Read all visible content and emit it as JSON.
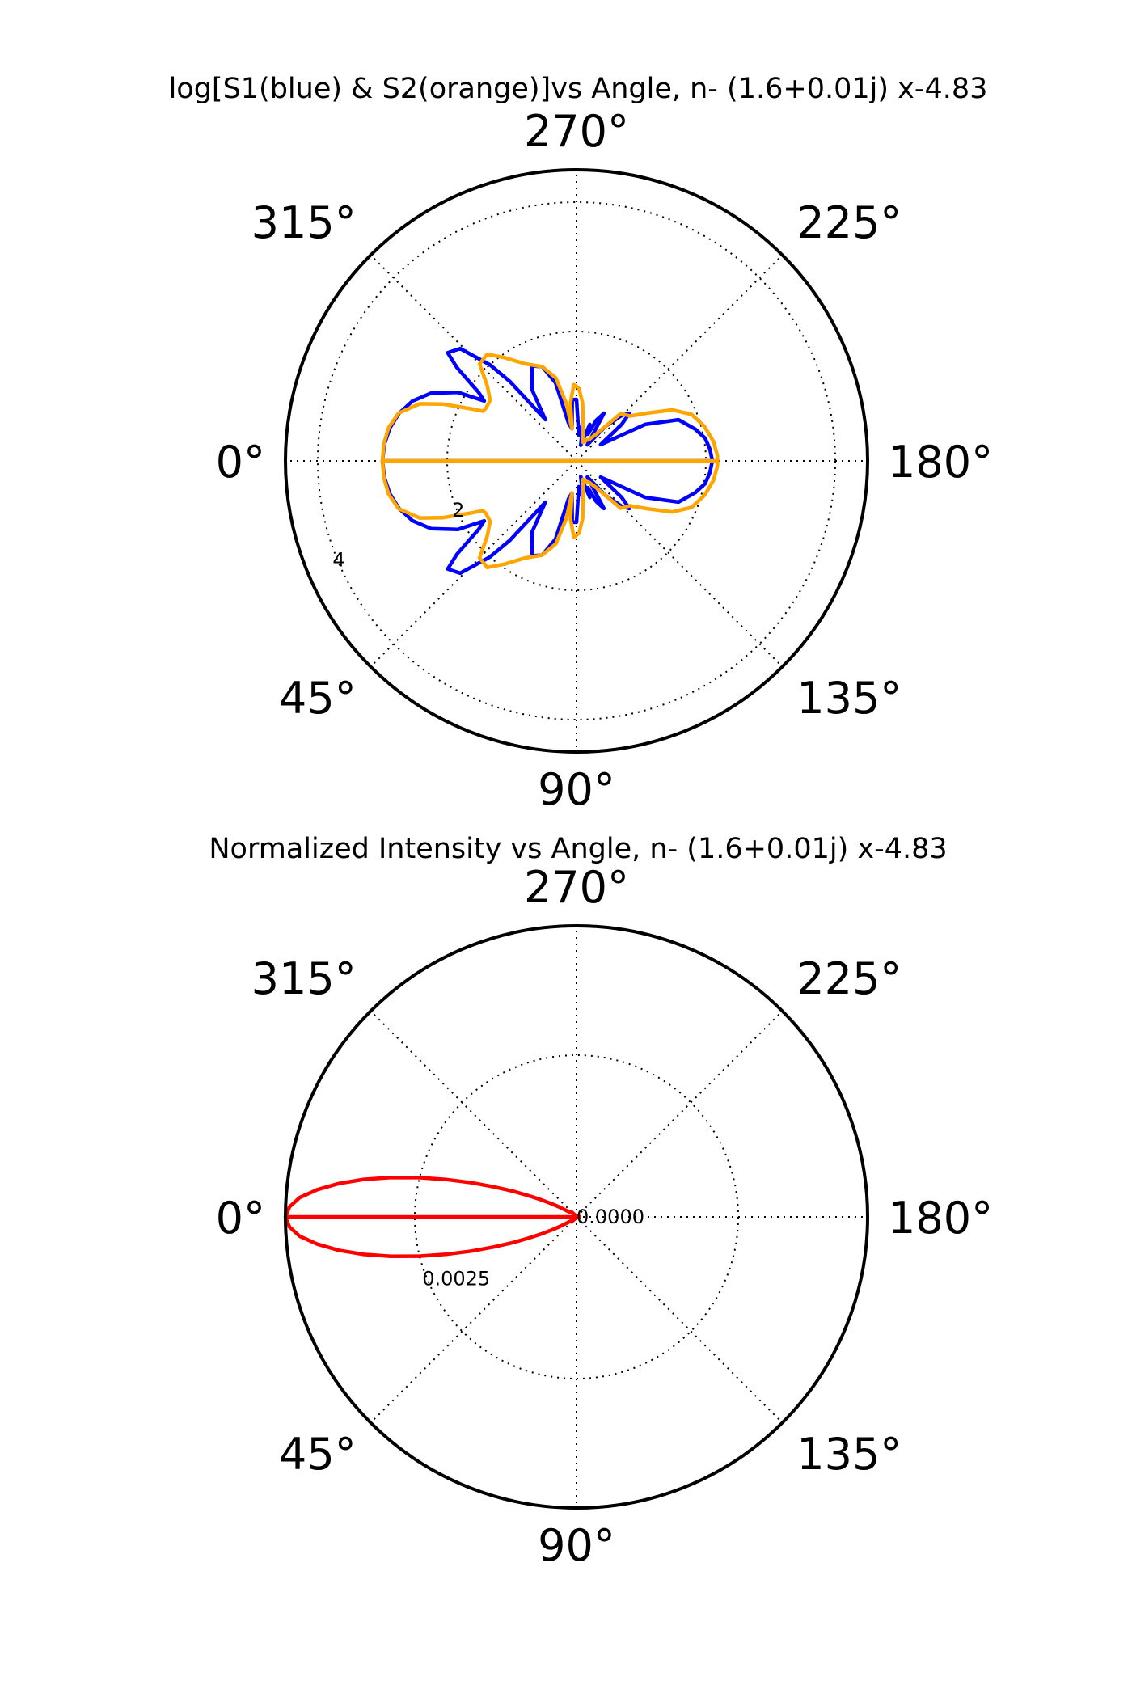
{
  "chart_data": [
    {
      "type": "polar-line",
      "title": "log[S1(blue) & S2(orange)]vs Angle, n- (1.6+0.01j) x-4.83",
      "theta_tick_labels": [
        "0°",
        "45°",
        "90°",
        "135°",
        "180°",
        "225°",
        "270°",
        "315°"
      ],
      "theta_ticks_deg": [
        0,
        45,
        90,
        135,
        180,
        225,
        270,
        315
      ],
      "radial_tick_labels": [
        "2",
        "4"
      ],
      "radial_ticks": [
        2,
        4
      ],
      "rlim": [
        0,
        4.5
      ],
      "grid": true,
      "series": [
        {
          "color": "#0000ff",
          "points": [
            [
              0,
              3.0
            ],
            [
              5,
              2.98
            ],
            [
              10,
              2.93
            ],
            [
              15,
              2.84
            ],
            [
              20,
              2.7
            ],
            [
              25,
              2.48
            ],
            [
              30,
              2.12
            ],
            [
              33,
              1.7
            ],
            [
              35,
              1.85
            ],
            [
              38,
              2.35
            ],
            [
              40,
              2.6
            ],
            [
              44,
              2.5
            ],
            [
              48,
              2.0
            ],
            [
              50,
              1.6
            ],
            [
              53,
              0.8
            ],
            [
              58,
              1.3
            ],
            [
              65,
              1.62
            ],
            [
              70,
              1.55
            ],
            [
              75,
              1.25
            ],
            [
              78,
              0.6
            ],
            [
              82,
              0.5
            ],
            [
              86,
              0.95
            ],
            [
              90,
              0.95
            ],
            [
              95,
              0.4
            ],
            [
              100,
              0.6
            ],
            [
              105,
              0.25
            ],
            [
              110,
              0.6
            ],
            [
              113,
              0.45
            ],
            [
              116,
              0.7
            ],
            [
              120,
              0.85
            ],
            [
              124,
              0.3
            ],
            [
              130,
              0.7
            ],
            [
              135,
              1.0
            ],
            [
              138,
              1.1
            ],
            [
              141,
              0.9
            ],
            [
              146,
              0.45
            ],
            [
              152,
              1.2
            ],
            [
              158,
              1.7
            ],
            [
              165,
              1.9
            ],
            [
              170,
              2.02
            ],
            [
              175,
              2.07
            ],
            [
              180,
              2.1
            ]
          ]
        },
        {
          "color": "#ffa500",
          "points": [
            [
              0,
              3.0
            ],
            [
              5,
              2.99
            ],
            [
              10,
              2.95
            ],
            [
              15,
              2.85
            ],
            [
              20,
              2.58
            ],
            [
              23,
              2.25
            ],
            [
              26,
              1.85
            ],
            [
              28,
              1.64
            ],
            [
              30,
              1.62
            ],
            [
              35,
              1.63
            ],
            [
              40,
              1.8
            ],
            [
              45,
              2.12
            ],
            [
              50,
              2.15
            ],
            [
              55,
              1.95
            ],
            [
              62,
              1.7
            ],
            [
              70,
              1.55
            ],
            [
              76,
              1.32
            ],
            [
              80,
              0.9
            ],
            [
              82,
              0.5
            ],
            [
              84,
              0.9
            ],
            [
              88,
              1.18
            ],
            [
              92,
              1.12
            ],
            [
              96,
              0.9
            ],
            [
              100,
              0.6
            ],
            [
              105,
              0.4
            ],
            [
              110,
              0.3
            ],
            [
              115,
              0.35
            ],
            [
              120,
              0.38
            ],
            [
              126,
              0.5
            ],
            [
              133,
              1.0
            ],
            [
              140,
              1.08
            ],
            [
              146,
              1.32
            ],
            [
              152,
              1.68
            ],
            [
              158,
              1.92
            ],
            [
              165,
              2.05
            ],
            [
              172,
              2.14
            ],
            [
              178,
              2.18
            ],
            [
              180,
              2.18
            ]
          ]
        }
      ]
    },
    {
      "type": "polar-line",
      "title": "Normalized Intensity vs Angle, n- (1.6+0.01j) x-4.83",
      "theta_tick_labels": [
        "0°",
        "45°",
        "90°",
        "135°",
        "180°",
        "225°",
        "270°",
        "315°"
      ],
      "theta_ticks_deg": [
        0,
        45,
        90,
        135,
        180,
        225,
        270,
        315
      ],
      "radial_tick_labels": [
        "0.0000",
        "0.0025"
      ],
      "radial_ticks": [
        0,
        0.0025
      ],
      "rlim": [
        0,
        0.0045
      ],
      "grid": true,
      "series": [
        {
          "color": "#ff0000",
          "points": [
            [
              0,
              0.0045
            ],
            [
              2,
              0.00444
            ],
            [
              4,
              0.00429
            ],
            [
              6,
              0.00403
            ],
            [
              8,
              0.00371
            ],
            [
              10,
              0.00334
            ],
            [
              12,
              0.00293
            ],
            [
              14,
              0.00251
            ],
            [
              16,
              0.0021
            ],
            [
              18,
              0.00171
            ],
            [
              20,
              0.00136
            ],
            [
              22,
              0.00106
            ],
            [
              24,
              0.0008
            ],
            [
              26,
              0.00059
            ],
            [
              28,
              0.00042
            ],
            [
              30,
              0.0003
            ],
            [
              35,
              0.00012
            ],
            [
              40,
              0.0001
            ],
            [
              45,
              0.00011
            ],
            [
              50,
              4e-05
            ],
            [
              55,
              3e-05
            ],
            [
              60,
              3e-05
            ],
            [
              70,
              1e-05
            ],
            [
              90,
              1e-05
            ],
            [
              110,
              1e-05
            ],
            [
              140,
              2e-05
            ],
            [
              160,
              3e-05
            ],
            [
              170,
              4e-05
            ],
            [
              180,
              4e-05
            ]
          ]
        }
      ]
    }
  ]
}
